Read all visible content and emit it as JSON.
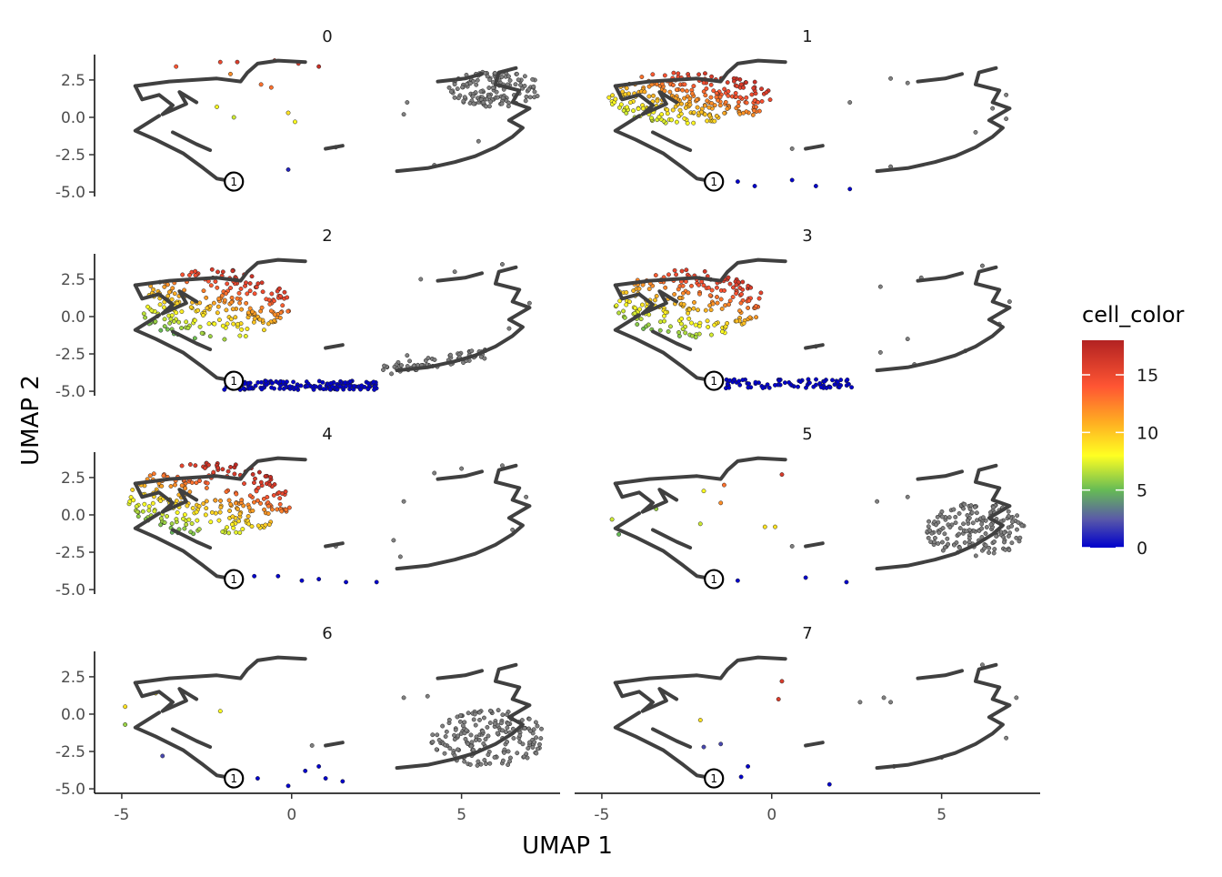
{
  "chart_data": {
    "type": "scatter",
    "facet_labels": [
      "0",
      "1",
      "2",
      "3",
      "4",
      "5",
      "6",
      "7"
    ],
    "xlabel": "UMAP 1",
    "ylabel": "UMAP 2",
    "xlim": [
      -5.8,
      7.9
    ],
    "ylim": [
      -5.3,
      4.2
    ],
    "x_ticks": [
      -5,
      0,
      5
    ],
    "x_tick_labels": [
      "-5",
      "0",
      "5"
    ],
    "y_ticks": [
      2.5,
      0.0,
      -2.5,
      -5.0
    ],
    "y_tick_labels": [
      "2.5",
      "0.0",
      "-2.5",
      "-5.0"
    ],
    "colorbar": {
      "title": "cell_color",
      "range": [
        0,
        18
      ],
      "ticks": [
        0,
        5,
        10,
        15
      ],
      "tick_labels": [
        "0",
        "5",
        "10",
        "15"
      ],
      "stops": [
        {
          "value": 0,
          "color": "#0000cc"
        },
        {
          "value": 2.5,
          "color": "#5a5aa8"
        },
        {
          "value": 5,
          "color": "#66bb55"
        },
        {
          "value": 8,
          "color": "#ffff22"
        },
        {
          "value": 11,
          "color": "#ffaa22"
        },
        {
          "value": 14,
          "color": "#ff5533"
        },
        {
          "value": 18,
          "color": "#b22222"
        }
      ]
    },
    "off_path_color": "#808080",
    "trajectory_color": "#404040",
    "root_node": {
      "label": "1",
      "x": -1.7,
      "y": -4.3
    },
    "trajectory": [
      [
        [
          -4.6,
          2.1
        ],
        [
          -3.6,
          2.4
        ],
        [
          -2.2,
          2.6
        ],
        [
          -1.5,
          2.4
        ],
        [
          -1.3,
          3.0
        ],
        [
          -1.0,
          3.6
        ],
        [
          -0.4,
          3.8
        ],
        [
          0.4,
          3.7
        ]
      ],
      [
        [
          -4.6,
          2.1
        ],
        [
          -4.4,
          1.2
        ],
        [
          -3.9,
          1.5
        ],
        [
          -3.5,
          0.8
        ],
        [
          -3.8,
          0.2
        ],
        [
          -3.1,
          0.9
        ],
        [
          -3.3,
          1.7
        ],
        [
          -2.8,
          1.0
        ]
      ],
      [
        [
          -3.9,
          0.1
        ],
        [
          -4.6,
          -0.9
        ],
        [
          -4.0,
          -1.5
        ],
        [
          -3.2,
          -2.4
        ],
        [
          -2.6,
          -3.4
        ],
        [
          -2.2,
          -4.1
        ],
        [
          -1.7,
          -4.3
        ]
      ],
      [
        [
          -3.5,
          -1.0
        ],
        [
          -2.8,
          -1.8
        ],
        [
          -2.4,
          -2.2
        ]
      ],
      [
        [
          1.0,
          -2.1
        ],
        [
          1.5,
          -1.9
        ]
      ],
      [
        [
          3.1,
          -3.6
        ],
        [
          4.0,
          -3.4
        ],
        [
          4.8,
          -3.0
        ],
        [
          5.4,
          -2.6
        ],
        [
          6.0,
          -2.0
        ],
        [
          6.5,
          -1.3
        ],
        [
          6.8,
          -0.7
        ],
        [
          6.4,
          -0.2
        ],
        [
          7.0,
          0.6
        ],
        [
          6.5,
          1.0
        ],
        [
          6.7,
          1.8
        ],
        [
          6.0,
          2.2
        ],
        [
          6.1,
          3.0
        ],
        [
          6.6,
          3.3
        ]
      ],
      [
        [
          4.3,
          2.4
        ],
        [
          5.1,
          2.6
        ],
        [
          5.6,
          2.9
        ]
      ]
    ],
    "panels": [
      {
        "label": "0",
        "points": [
          {
            "x": -1.6,
            "y": 3.7,
            "c": 16
          },
          {
            "x": -0.5,
            "y": 3.8,
            "c": 16
          },
          {
            "x": 0.2,
            "y": 3.6,
            "c": 16
          },
          {
            "x": 0.8,
            "y": 3.4,
            "c": 17
          },
          {
            "x": -2.1,
            "y": 3.7,
            "c": 15
          },
          {
            "x": -3.4,
            "y": 3.4,
            "c": 14
          },
          {
            "x": -0.9,
            "y": 2.2,
            "c": 13
          },
          {
            "x": -0.6,
            "y": 2.0,
            "c": 13
          },
          {
            "x": -1.8,
            "y": 2.9,
            "c": 12
          },
          {
            "x": -2.2,
            "y": 0.7,
            "c": 8
          },
          {
            "x": -1.7,
            "y": 0.0,
            "c": 7
          },
          {
            "x": -0.1,
            "y": 0.3,
            "c": 9
          },
          {
            "x": 0.1,
            "y": -0.3,
            "c": 8
          },
          {
            "x": -0.1,
            "y": -3.5,
            "c": 1
          },
          {
            "x": 1.3,
            "y": -2.0,
            "c": -1
          },
          {
            "x": 3.4,
            "y": 1.0,
            "c": -1
          },
          {
            "x": 3.3,
            "y": 0.2,
            "c": -1
          },
          {
            "x": 4.2,
            "y": -3.2,
            "c": -1
          },
          {
            "x": 5.5,
            "y": -1.6,
            "c": -1
          }
        ],
        "blob": {
          "cx": 6.0,
          "cy": 1.9,
          "rx": 1.4,
          "ry": 1.2,
          "n": 140,
          "c": -1
        }
      },
      {
        "label": "1",
        "points": [
          {
            "x": 2.3,
            "y": -4.8,
            "c": 0
          },
          {
            "x": 1.3,
            "y": -4.6,
            "c": 0
          },
          {
            "x": 0.6,
            "y": -4.2,
            "c": 0
          },
          {
            "x": -0.5,
            "y": -4.6,
            "c": 0
          },
          {
            "x": -1.0,
            "y": -4.3,
            "c": 0
          },
          {
            "x": 0.6,
            "y": -2.1,
            "c": -1
          },
          {
            "x": 3.5,
            "y": 2.6,
            "c": -1
          },
          {
            "x": 4.0,
            "y": 2.3,
            "c": -1
          },
          {
            "x": 6.9,
            "y": 1.5,
            "c": -1
          },
          {
            "x": 6.5,
            "y": 0.6,
            "c": -1
          },
          {
            "x": 3.5,
            "y": -3.3,
            "c": -1
          },
          {
            "x": 6.0,
            "y": -1.0,
            "c": -1
          },
          {
            "x": 6.9,
            "y": -0.1,
            "c": -1
          },
          {
            "x": 2.3,
            "y": 1.0,
            "c": -1
          }
        ],
        "blob": {
          "cx": -2.4,
          "cy": 1.3,
          "rx": 2.4,
          "ry": 1.8,
          "n": 260,
          "c": "grad"
        }
      },
      {
        "label": "2",
        "points": [
          {
            "x": 3.8,
            "y": 2.5,
            "c": -1
          },
          {
            "x": 4.8,
            "y": 3.0,
            "c": -1
          },
          {
            "x": 6.2,
            "y": 3.5,
            "c": -1
          },
          {
            "x": 7.0,
            "y": 0.9,
            "c": -1
          },
          {
            "x": 6.4,
            "y": -0.8,
            "c": -1
          },
          {
            "x": 5.3,
            "y": -2.3,
            "c": -1
          },
          {
            "x": 3.6,
            "y": -3.3,
            "c": -1
          },
          {
            "x": 3.4,
            "y": -2.6,
            "c": -1
          }
        ],
        "blob": {
          "cx": -2.3,
          "cy": 0.8,
          "rx": 2.3,
          "ry": 2.4,
          "n": 240,
          "c": "grad"
        },
        "band": {
          "x0": -2.0,
          "x1": 2.5,
          "y": -4.6,
          "n": 150,
          "c": 0
        },
        "band2": {
          "x0": 2.6,
          "x1": 5.8,
          "y": -3.6,
          "n": 60,
          "c": -1
        }
      },
      {
        "label": "3",
        "points": [
          {
            "x": 3.2,
            "y": 2.0,
            "c": -1
          },
          {
            "x": 4.4,
            "y": 2.6,
            "c": -1
          },
          {
            "x": 6.2,
            "y": 3.4,
            "c": -1
          },
          {
            "x": 7.0,
            "y": 1.0,
            "c": -1
          },
          {
            "x": 6.7,
            "y": -0.5,
            "c": -1
          },
          {
            "x": 5.7,
            "y": -2.3,
            "c": -1
          },
          {
            "x": 4.2,
            "y": -3.2,
            "c": -1
          },
          {
            "x": 3.2,
            "y": -2.4,
            "c": -1
          },
          {
            "x": 4.0,
            "y": -1.5,
            "c": -1
          },
          {
            "x": 1.3,
            "y": -2.0,
            "c": -1
          }
        ],
        "blob": {
          "cx": -2.4,
          "cy": 0.9,
          "rx": 2.2,
          "ry": 2.3,
          "n": 220,
          "c": "grad"
        },
        "band": {
          "x0": -1.6,
          "x1": 2.4,
          "y": -4.5,
          "n": 80,
          "c": 0
        }
      },
      {
        "label": "4",
        "points": [
          {
            "x": 2.5,
            "y": -4.5,
            "c": 0
          },
          {
            "x": 1.6,
            "y": -4.5,
            "c": 0
          },
          {
            "x": 0.8,
            "y": -4.3,
            "c": 0
          },
          {
            "x": 0.3,
            "y": -4.4,
            "c": 0
          },
          {
            "x": -0.4,
            "y": -4.1,
            "c": 0
          },
          {
            "x": -1.1,
            "y": -4.1,
            "c": 0
          },
          {
            "x": 4.2,
            "y": 2.8,
            "c": -1
          },
          {
            "x": 5.0,
            "y": 3.1,
            "c": -1
          },
          {
            "x": 6.2,
            "y": 3.3,
            "c": -1
          },
          {
            "x": 6.9,
            "y": 1.2,
            "c": -1
          },
          {
            "x": 6.5,
            "y": -1.0,
            "c": -1
          },
          {
            "x": 3.2,
            "y": -2.8,
            "c": -1
          },
          {
            "x": 3.0,
            "y": -1.7,
            "c": -1
          },
          {
            "x": 3.3,
            "y": 0.9,
            "c": -1
          },
          {
            "x": 1.3,
            "y": -2.1,
            "c": -1
          }
        ],
        "blob": {
          "cx": -2.4,
          "cy": 1.0,
          "rx": 2.4,
          "ry": 2.5,
          "n": 260,
          "c": "grad"
        }
      },
      {
        "label": "5",
        "points": [
          {
            "x": 0.3,
            "y": 2.7,
            "c": 16
          },
          {
            "x": -1.5,
            "y": 0.8,
            "c": 12
          },
          {
            "x": -1.4,
            "y": 2.0,
            "c": 13
          },
          {
            "x": -2.0,
            "y": 1.6,
            "c": 8
          },
          {
            "x": -3.4,
            "y": 0.4,
            "c": 6
          },
          {
            "x": -4.7,
            "y": -0.3,
            "c": 7
          },
          {
            "x": -4.5,
            "y": -1.3,
            "c": 5
          },
          {
            "x": -2.1,
            "y": -0.6,
            "c": 7
          },
          {
            "x": -0.2,
            "y": -0.8,
            "c": 9
          },
          {
            "x": 0.1,
            "y": -0.8,
            "c": 9
          },
          {
            "x": -1.0,
            "y": -4.4,
            "c": 0
          },
          {
            "x": 1.0,
            "y": -4.2,
            "c": 0
          },
          {
            "x": 2.2,
            "y": -4.5,
            "c": 0
          },
          {
            "x": 0.6,
            "y": -2.1,
            "c": -1
          },
          {
            "x": 3.1,
            "y": 0.9,
            "c": -1
          },
          {
            "x": 4.0,
            "y": 1.2,
            "c": -1
          }
        ],
        "blob": {
          "cx": 6.0,
          "cy": -1.0,
          "rx": 1.5,
          "ry": 1.8,
          "n": 170,
          "c": -1
        }
      },
      {
        "label": "6",
        "points": [
          {
            "x": -4.9,
            "y": 0.5,
            "c": 9
          },
          {
            "x": -4.0,
            "y": 1.4,
            "c": 9
          },
          {
            "x": -4.9,
            "y": -0.7,
            "c": 6
          },
          {
            "x": -2.1,
            "y": 0.2,
            "c": 8
          },
          {
            "x": -3.8,
            "y": -2.8,
            "c": 2
          },
          {
            "x": 0.4,
            "y": -3.8,
            "c": 0
          },
          {
            "x": 1.0,
            "y": -4.3,
            "c": 0
          },
          {
            "x": 1.5,
            "y": -4.5,
            "c": 0
          },
          {
            "x": -0.1,
            "y": -4.8,
            "c": 0
          },
          {
            "x": -1.0,
            "y": -4.3,
            "c": 0
          },
          {
            "x": 0.8,
            "y": -3.5,
            "c": 0
          },
          {
            "x": 3.3,
            "y": 1.1,
            "c": -1
          },
          {
            "x": 4.0,
            "y": 1.2,
            "c": -1
          },
          {
            "x": 0.6,
            "y": -2.1,
            "c": -1
          }
        ],
        "blob": {
          "cx": 5.8,
          "cy": -1.6,
          "rx": 1.7,
          "ry": 1.9,
          "n": 180,
          "c": -1
        }
      },
      {
        "label": "7",
        "points": [
          {
            "x": 0.3,
            "y": 2.2,
            "c": 16
          },
          {
            "x": 0.2,
            "y": 1.0,
            "c": 16
          },
          {
            "x": -2.1,
            "y": -0.4,
            "c": 9
          },
          {
            "x": -1.5,
            "y": -2.0,
            "c": 2
          },
          {
            "x": -2.0,
            "y": -2.2,
            "c": 2
          },
          {
            "x": -0.7,
            "y": -3.5,
            "c": 0
          },
          {
            "x": -0.9,
            "y": -4.2,
            "c": 0
          },
          {
            "x": 1.7,
            "y": -4.7,
            "c": 0
          },
          {
            "x": 3.3,
            "y": 1.1,
            "c": -1
          },
          {
            "x": 3.5,
            "y": 0.8,
            "c": -1
          },
          {
            "x": 6.2,
            "y": 3.3,
            "c": -1
          },
          {
            "x": 7.2,
            "y": 1.1,
            "c": -1
          },
          {
            "x": 6.9,
            "y": -1.6,
            "c": -1
          },
          {
            "x": 5.0,
            "y": -2.9,
            "c": -1
          },
          {
            "x": 3.6,
            "y": -3.5,
            "c": -1
          },
          {
            "x": 2.6,
            "y": 0.8,
            "c": -1
          }
        ]
      }
    ]
  }
}
